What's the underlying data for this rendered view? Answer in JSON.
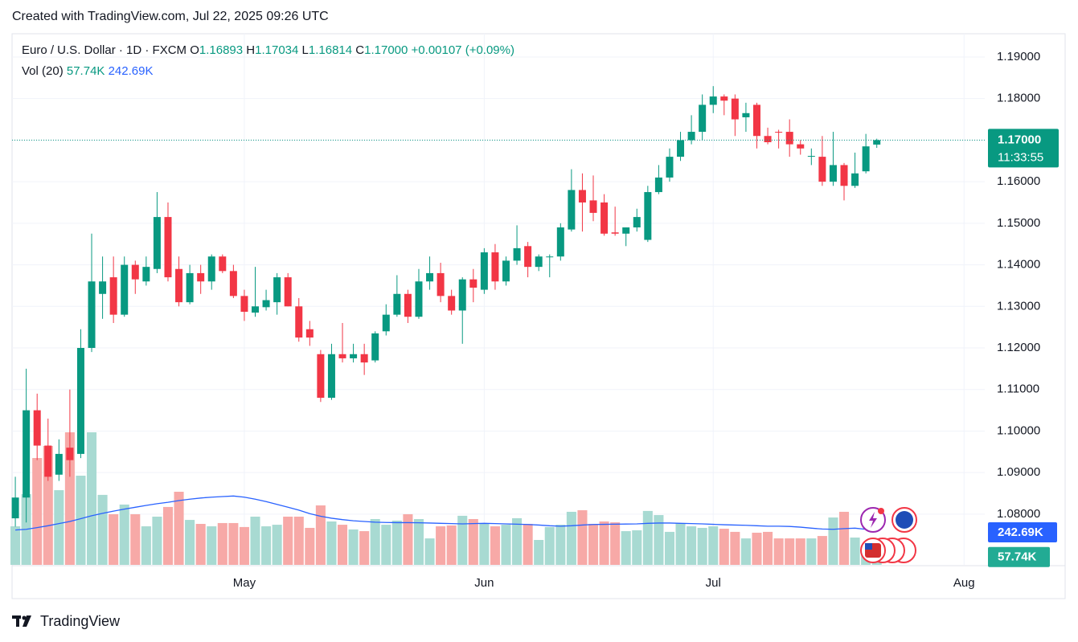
{
  "header": {
    "title": "Created with TradingView.com, Jul 22, 2025 09:26 UTC"
  },
  "footer": {
    "brand": "TradingView"
  },
  "chart_data": {
    "type": "candlestick",
    "legend": {
      "symbol": "Euro / U.S. Dollar · 1D · FXCM",
      "o_label": "O",
      "o": "1.16893",
      "h_label": "H",
      "h": "1.17034",
      "l_label": "L",
      "l": "1.16814",
      "c_label": "C",
      "c": "1.17000",
      "change": "+0.00107 (+0.09%)"
    },
    "up_color": "#089981",
    "down_color": "#f23645",
    "open": [
      1.079,
      1.084,
      1.105,
      1.0965,
      1.0895,
      1.096,
      1.0945,
      1.12,
      1.133,
      1.137,
      1.128,
      1.14,
      1.136,
      1.139,
      1.1515,
      1.139,
      1.131,
      1.138,
      1.136,
      1.142,
      1.1385,
      1.1325,
      1.1285,
      1.1298,
      1.131,
      1.137,
      1.13,
      1.1245,
      1.1185,
      1.108,
      1.1185,
      1.1175,
      1.1185,
      1.117,
      1.124,
      1.128,
      1.133,
      1.1275,
      1.136,
      1.138,
      1.1325,
      1.129,
      1.1365,
      1.134,
      1.143,
      1.136,
      1.141,
      1.1445,
      1.1395,
      1.142,
      1.142,
      1.1485,
      1.158,
      1.1555,
      1.155,
      1.1478,
      1.1475,
      1.149,
      1.146,
      1.1575,
      1.161,
      1.166,
      1.17,
      1.172,
      1.1785,
      1.1805,
      1.18,
      1.1755,
      1.1785,
      1.171,
      1.172,
      1.172,
      1.169,
      1.166,
      1.166,
      1.16,
      1.164,
      1.159,
      1.1625,
      1.16893
    ],
    "high": [
      1.089,
      1.115,
      1.109,
      1.103,
      1.098,
      1.11,
      1.1245,
      1.1475,
      1.142,
      1.142,
      1.142,
      1.141,
      1.142,
      1.1575,
      1.155,
      1.142,
      1.14,
      1.14,
      1.1425,
      1.1425,
      1.14,
      1.134,
      1.1395,
      1.134,
      1.138,
      1.138,
      1.132,
      1.1265,
      1.1195,
      1.121,
      1.126,
      1.121,
      1.121,
      1.124,
      1.1305,
      1.1375,
      1.134,
      1.139,
      1.142,
      1.1405,
      1.134,
      1.137,
      1.139,
      1.144,
      1.145,
      1.142,
      1.1495,
      1.1455,
      1.1425,
      1.1425,
      1.15,
      1.163,
      1.162,
      1.1615,
      1.157,
      1.154,
      1.149,
      1.1535,
      1.159,
      1.164,
      1.168,
      1.172,
      1.176,
      1.181,
      1.183,
      1.181,
      1.181,
      1.179,
      1.179,
      1.173,
      1.1725,
      1.175,
      1.17,
      1.168,
      1.171,
      1.172,
      1.1645,
      1.167,
      1.1715,
      1.17034
    ],
    "low": [
      1.077,
      1.078,
      1.093,
      1.088,
      1.088,
      1.089,
      1.0935,
      1.119,
      1.127,
      1.126,
      1.1275,
      1.133,
      1.135,
      1.138,
      1.136,
      1.13,
      1.1305,
      1.133,
      1.134,
      1.138,
      1.132,
      1.1265,
      1.1275,
      1.129,
      1.128,
      1.13,
      1.1215,
      1.1205,
      1.107,
      1.1075,
      1.1165,
      1.1165,
      1.1135,
      1.1165,
      1.123,
      1.1275,
      1.126,
      1.127,
      1.134,
      1.131,
      1.128,
      1.121,
      1.131,
      1.133,
      1.134,
      1.135,
      1.14,
      1.137,
      1.1385,
      1.137,
      1.141,
      1.148,
      1.148,
      1.1505,
      1.147,
      1.147,
      1.1445,
      1.148,
      1.1455,
      1.157,
      1.16,
      1.165,
      1.169,
      1.17,
      1.1765,
      1.176,
      1.171,
      1.172,
      1.168,
      1.169,
      1.168,
      1.166,
      1.1665,
      1.164,
      1.159,
      1.159,
      1.1555,
      1.1585,
      1.162,
      1.16814
    ],
    "close": [
      1.084,
      1.105,
      1.0965,
      1.089,
      1.0945,
      1.093,
      1.12,
      1.136,
      1.136,
      1.128,
      1.14,
      1.1365,
      1.1395,
      1.1515,
      1.137,
      1.131,
      1.138,
      1.136,
      1.142,
      1.1385,
      1.1325,
      1.1287,
      1.13,
      1.1315,
      1.137,
      1.13,
      1.1225,
      1.1225,
      1.108,
      1.1185,
      1.1175,
      1.1185,
      1.1165,
      1.1235,
      1.128,
      1.133,
      1.1275,
      1.136,
      1.138,
      1.1325,
      1.129,
      1.1365,
      1.1345,
      1.143,
      1.136,
      1.141,
      1.144,
      1.1395,
      1.142,
      1.142,
      1.149,
      1.158,
      1.155,
      1.1525,
      1.1475,
      1.1475,
      1.149,
      1.1515,
      1.1575,
      1.161,
      1.166,
      1.17,
      1.172,
      1.1785,
      1.1805,
      1.1795,
      1.175,
      1.1765,
      1.171,
      1.1695,
      1.1718,
      1.169,
      1.168,
      1.1662,
      1.16,
      1.164,
      1.159,
      1.162,
      1.1685,
      1.17
    ],
    "volume": {
      "name": "Vol (20)",
      "up_color": "#a8dad2",
      "down_color": "#f7a9a7",
      "label_color": "#22ab94",
      "values": [
        271,
        497,
        751,
        836,
        525,
        932,
        627,
        932,
        492,
        356,
        424,
        356,
        271,
        339,
        407,
        514,
        316,
        288,
        271,
        294,
        294,
        266,
        339,
        271,
        282,
        339,
        339,
        260,
        418,
        305,
        282,
        249,
        237,
        322,
        282,
        311,
        356,
        322,
        186,
        271,
        277,
        345,
        322,
        288,
        271,
        282,
        328,
        288,
        175,
        266,
        282,
        373,
        384,
        288,
        305,
        299,
        237,
        243,
        379,
        350,
        232,
        294,
        271,
        260,
        271,
        254,
        232,
        186,
        226,
        232,
        186,
        186,
        186,
        186,
        203,
        333,
        373,
        192,
        124,
        57.74
      ],
      "last_label": "57.74K"
    },
    "volume_ma": {
      "color": "#2962ff",
      "values": [
        245,
        250,
        262,
        275,
        290,
        305,
        325,
        345,
        362,
        378,
        392,
        405,
        418,
        430,
        440,
        452,
        462,
        470,
        476,
        480,
        484,
        476,
        462,
        445,
        425,
        405,
        385,
        360,
        342,
        328,
        318,
        310,
        305,
        300,
        298,
        297,
        297,
        296,
        294,
        292,
        290,
        288,
        290,
        292,
        290,
        288,
        286,
        284,
        280,
        275,
        272,
        275,
        280,
        284,
        285,
        286,
        287,
        288,
        292,
        294,
        294,
        292,
        290,
        288,
        285,
        282,
        280,
        278,
        275,
        272,
        272,
        270,
        265,
        258,
        252,
        250,
        255,
        258,
        250,
        242.69
      ],
      "last_label": "242.69K"
    },
    "current_price": {
      "value": 1.17,
      "label": "1.17000",
      "countdown": "11:33:55"
    },
    "xlim": [
      -0.3,
      88.9
    ],
    "xticks": [
      {
        "value": 21,
        "label": "May"
      },
      {
        "value": 43,
        "label": "Jun"
      },
      {
        "value": 64,
        "label": "Jul"
      },
      {
        "value": 87,
        "label": "Aug"
      }
    ],
    "ylim": [
      1.0678,
      1.1956
    ],
    "yticks": [
      {
        "value": 1.08,
        "label": "1.08000"
      },
      {
        "value": 1.09,
        "label": "1.09000"
      },
      {
        "value": 1.1,
        "label": "1.10000"
      },
      {
        "value": 1.11,
        "label": "1.11000"
      },
      {
        "value": 1.12,
        "label": "1.12000"
      },
      {
        "value": 1.13,
        "label": "1.13000"
      },
      {
        "value": 1.14,
        "label": "1.14000"
      },
      {
        "value": 1.15,
        "label": "1.15000"
      },
      {
        "value": 1.16,
        "label": "1.16000"
      },
      {
        "value": 1.17,
        "label": "1.17000"
      },
      {
        "value": 1.18,
        "label": "1.18000"
      },
      {
        "value": 1.19,
        "label": "1.19000"
      }
    ],
    "grid": true
  }
}
